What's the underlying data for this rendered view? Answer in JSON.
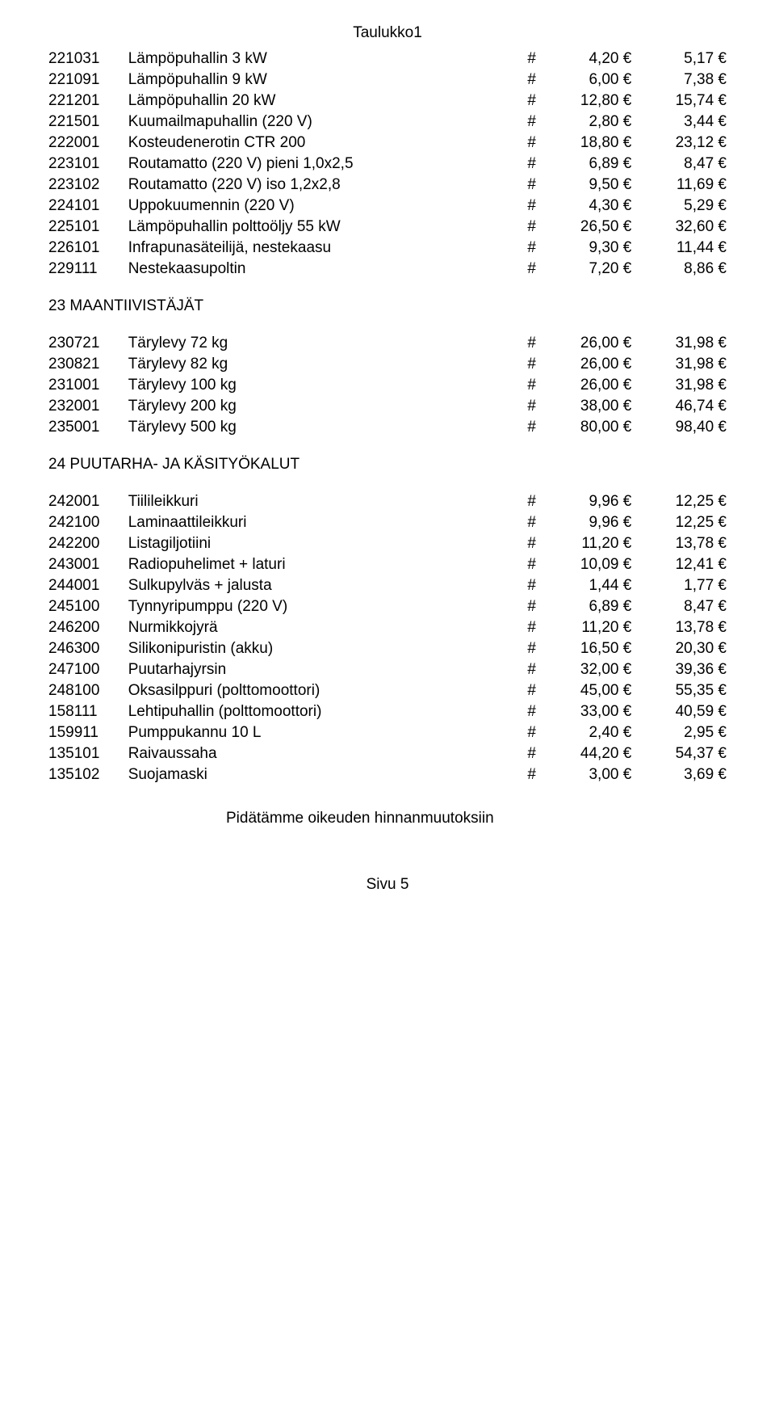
{
  "page_title": "Taulukko1",
  "hash": "#",
  "sections": [
    {
      "heading": null,
      "rows": [
        {
          "code": "221031",
          "desc": "Lämpöpuhallin 3 kW",
          "p1": "4,20 €",
          "p2": "5,17 €"
        },
        {
          "code": "221091",
          "desc": "Lämpöpuhallin 9 kW",
          "p1": "6,00 €",
          "p2": "7,38 €"
        },
        {
          "code": "221201",
          "desc": "Lämpöpuhallin 20 kW",
          "p1": "12,80 €",
          "p2": "15,74 €"
        },
        {
          "code": "221501",
          "desc": "Kuumailmapuhallin (220 V)",
          "p1": "2,80 €",
          "p2": "3,44 €"
        },
        {
          "code": "222001",
          "desc": "Kosteudenerotin CTR 200",
          "p1": "18,80 €",
          "p2": "23,12 €"
        },
        {
          "code": "223101",
          "desc": "Routamatto (220 V) pieni 1,0x2,5",
          "p1": "6,89 €",
          "p2": "8,47 €"
        },
        {
          "code": "223102",
          "desc": "Routamatto (220 V) iso 1,2x2,8",
          "p1": "9,50 €",
          "p2": "11,69 €"
        },
        {
          "code": "224101",
          "desc": "Uppokuumennin (220 V)",
          "p1": "4,30 €",
          "p2": "5,29 €"
        },
        {
          "code": "225101",
          "desc": "Lämpöpuhallin polttoöljy 55 kW",
          "p1": "26,50 €",
          "p2": "32,60 €"
        },
        {
          "code": "226101",
          "desc": "Infrapunasäteilijä, nestekaasu",
          "p1": "9,30 €",
          "p2": "11,44 €"
        },
        {
          "code": "229111",
          "desc": "Nestekaasupoltin",
          "p1": "7,20 €",
          "p2": "8,86 €"
        }
      ]
    },
    {
      "heading": "23 MAANTIIVISTÄJÄT",
      "rows": [
        {
          "code": "230721",
          "desc": "Tärylevy 72 kg",
          "p1": "26,00 €",
          "p2": "31,98 €"
        },
        {
          "code": "230821",
          "desc": "Tärylevy 82 kg",
          "p1": "26,00 €",
          "p2": "31,98 €"
        },
        {
          "code": "231001",
          "desc": "Tärylevy 100 kg",
          "p1": "26,00 €",
          "p2": "31,98 €"
        },
        {
          "code": "232001",
          "desc": "Tärylevy 200 kg",
          "p1": "38,00 €",
          "p2": "46,74 €"
        },
        {
          "code": "235001",
          "desc": "Tärylevy 500 kg",
          "p1": "80,00 €",
          "p2": "98,40 €"
        }
      ]
    },
    {
      "heading": "24 PUUTARHA- JA KÄSITYÖKALUT",
      "rows": [
        {
          "code": "242001",
          "desc": "Tiilileikkuri",
          "p1": "9,96 €",
          "p2": "12,25 €"
        },
        {
          "code": "242100",
          "desc": "Laminaattileikkuri",
          "p1": "9,96 €",
          "p2": "12,25 €"
        },
        {
          "code": "242200",
          "desc": "Listagiljotiini",
          "p1": "11,20 €",
          "p2": "13,78 €"
        },
        {
          "code": "243001",
          "desc": "Radiopuhelimet + laturi",
          "p1": "10,09 €",
          "p2": "12,41 €"
        },
        {
          "code": "244001",
          "desc": "Sulkupylväs + jalusta",
          "p1": "1,44 €",
          "p2": "1,77 €"
        },
        {
          "code": "245100",
          "desc": "Tynnyripumppu (220 V)",
          "p1": "6,89 €",
          "p2": "8,47 €"
        },
        {
          "code": "246200",
          "desc": "Nurmikkojyrä",
          "p1": "11,20 €",
          "p2": "13,78 €"
        },
        {
          "code": "246300",
          "desc": "Silikonipuristin (akku)",
          "p1": "16,50 €",
          "p2": "20,30 €"
        },
        {
          "code": "247100",
          "desc": "Puutarhajyrsin",
          "p1": "32,00 €",
          "p2": "39,36 €"
        },
        {
          "code": "248100",
          "desc": "Oksasilppuri (polttomoottori)",
          "p1": "45,00 €",
          "p2": "55,35 €"
        },
        {
          "code": "158111",
          "desc": "Lehtipuhallin (polttomoottori)",
          "p1": "33,00 €",
          "p2": "40,59 €"
        },
        {
          "code": "159911",
          "desc": "Pumppukannu 10 L",
          "p1": "2,40 €",
          "p2": "2,95 €"
        },
        {
          "code": "135101",
          "desc": "Raivaussaha",
          "p1": "44,20 €",
          "p2": "54,37 €"
        },
        {
          "code": "135102",
          "desc": "Suojamaski",
          "p1": "3,00 €",
          "p2": "3,69 €"
        }
      ]
    }
  ],
  "footer_note": "Pidätämme oikeuden hinnanmuutoksiin",
  "page_num": "Sivu 5"
}
